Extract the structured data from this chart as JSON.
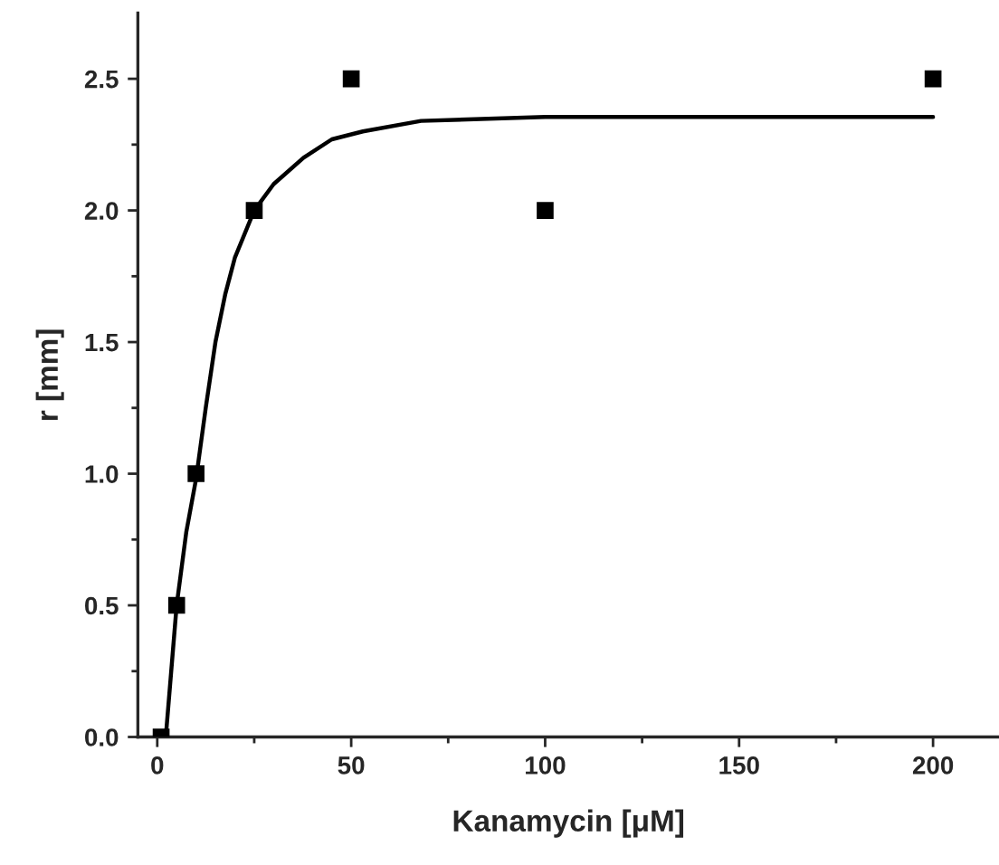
{
  "chart_data": {
    "type": "scatter",
    "xlabel": "Kanamycin [μM]",
    "ylabel": "r [mm]",
    "x": [
      1,
      5,
      10,
      25,
      50,
      100,
      200
    ],
    "series": [
      {
        "color": "#000000",
        "marker": "square",
        "values": [
          0.0,
          0.5,
          1.0,
          2.0,
          2.5,
          2.0,
          2.5
        ]
      },
      {
        "type": "line",
        "color": "#000000",
        "marker": "none",
        "line_style": "solid",
        "x": [
          2.2,
          5,
          7.5,
          10,
          12.5,
          15,
          17.5,
          20,
          25,
          30,
          37.7,
          45,
          53,
          68,
          100,
          200
        ],
        "values": [
          0,
          0.5,
          0.78,
          0.98,
          1.25,
          1.5,
          1.68,
          1.82,
          2.0,
          2.1,
          2.2,
          2.27,
          2.3,
          2.34,
          2.355,
          2.355
        ]
      }
    ],
    "xlim": [
      -5,
      217
    ],
    "ylim": [
      0,
      2.75
    ],
    "xticks": [
      0,
      {
        "value": 25,
        "label": null
      },
      50,
      {
        "value": 75,
        "label": null
      },
      100,
      {
        "value": 125,
        "label": null
      },
      150,
      {
        "value": 175,
        "label": null
      },
      200
    ],
    "yticks": [
      "0.0",
      {
        "value": 0.25,
        "label": null
      },
      {
        "value": 0.5,
        "label": "0.5"
      },
      {
        "value": 0.75,
        "label": null
      },
      {
        "value": 1.0,
        "label": "1.0"
      },
      {
        "value": 1.25,
        "label": null
      },
      {
        "value": 1.5,
        "label": "1.5"
      },
      {
        "value": 1.75,
        "label": null
      },
      {
        "value": 2.0,
        "label": "2.0"
      },
      {
        "value": 2.25,
        "label": null
      },
      {
        "value": 2.5,
        "label": "2.5"
      }
    ],
    "grid": false,
    "legend": false
  }
}
